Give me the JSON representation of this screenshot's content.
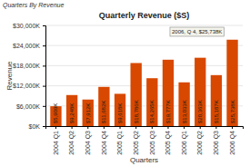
{
  "chart_data": {
    "type": "bar",
    "title": "Quarterly Revenue ($S)",
    "subtitle": "Quarters By Revenue",
    "xlabel": "Quarters",
    "ylabel": "Revenue",
    "categories": [
      "2004 Q1",
      "2004 Q2",
      "2004 Q3",
      "2004 Q4",
      "2005 Q1",
      "2005 Q2",
      "2005 Q3",
      "2005 Q4",
      "2006 Q1",
      "2006 Q2",
      "2006 Q3",
      "2006 Q4"
    ],
    "values": [
      5909,
      9248,
      7912,
      11682,
      9618,
      18786,
      14265,
      19777,
      13033,
      20363,
      15187,
      25738
    ],
    "value_labels": [
      "$5,909K",
      "$9,248K",
      "$7,912K",
      "$11,682K",
      "$9,618K",
      "$18,786K",
      "$14,265K",
      "$19,777K",
      "$13,033K",
      "$20,363K",
      "$15,187K",
      "$25,738K"
    ],
    "data_labels": true,
    "color": "#D84800",
    "ylim": [
      0,
      30000
    ],
    "yticks": [
      {
        "value": 0,
        "label": "$0K"
      },
      {
        "value": 6000,
        "label": "$6,000K"
      },
      {
        "value": 12000,
        "label": "$12,000K"
      },
      {
        "value": 18000,
        "label": "$18,000K"
      },
      {
        "value": 24000,
        "label": "$24,000K"
      },
      {
        "value": 30000,
        "label": "$30,000K"
      }
    ],
    "grid": true,
    "annotations": [
      "2006, Q 4, $25,738K"
    ]
  }
}
